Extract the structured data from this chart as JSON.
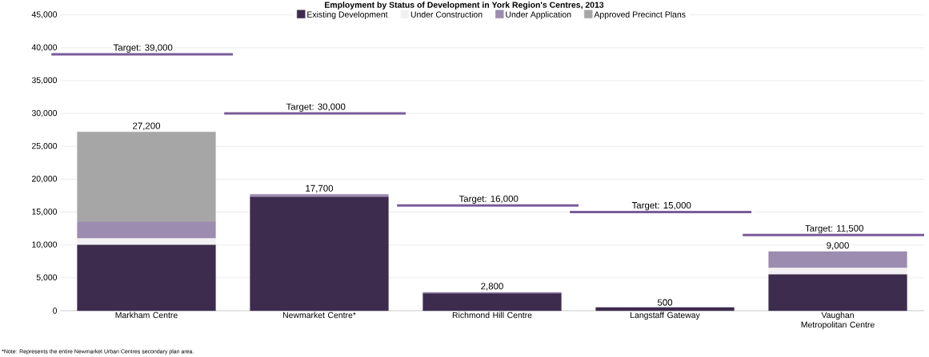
{
  "chart_data": {
    "type": "bar",
    "stacked": true,
    "title": "Employment by Status of Development in York Region's Centres, 2013",
    "categories": [
      "Markham Centre",
      "Newmarket Centre*",
      "Richmond Hill Centre",
      "Langstaff Gateway",
      "Vaughan Metropolitan Centre"
    ],
    "series": [
      {
        "name": "Existing Development",
        "color": "#3d2c4e",
        "values": [
          10000,
          17300,
          2600,
          500,
          5500
        ]
      },
      {
        "name": "Under Construction",
        "color": "#f2f0f2",
        "values": [
          1000,
          0,
          0,
          0,
          1000
        ]
      },
      {
        "name": "Under Application",
        "color": "#9c8cb0",
        "values": [
          2500,
          400,
          200,
          0,
          2500
        ]
      },
      {
        "name": "Approved Precinct Plans",
        "color": "#a6a6a6",
        "values": [
          13700,
          0,
          0,
          0,
          0
        ]
      }
    ],
    "totals": [
      "27,200",
      "17,700",
      "2,800",
      "500",
      "9,000"
    ],
    "ylim": [
      0,
      45000
    ],
    "yticks": [
      {
        "value": 0,
        "label": "0"
      },
      {
        "value": 5000,
        "label": "5,000"
      },
      {
        "value": 10000,
        "label": "10,000"
      },
      {
        "value": 15000,
        "label": "15,000"
      },
      {
        "value": 20000,
        "label": "20,000"
      },
      {
        "value": 25000,
        "label": "25,000"
      },
      {
        "value": 30000,
        "label": "30,000"
      },
      {
        "value": 35000,
        "label": "35,000"
      },
      {
        "value": 40000,
        "label": "40,000"
      },
      {
        "value": 45000,
        "label": "45,000"
      }
    ],
    "grid": "y",
    "legend": "top",
    "ref_lines": [
      {
        "axis": "y",
        "value": 39000,
        "label": "Target: 39,000",
        "color": "#7a5c9a"
      },
      {
        "axis": "y",
        "value": 30000,
        "label": "Target: 30,000",
        "color": "#7a5c9a"
      },
      {
        "axis": "y",
        "value": 16000,
        "label": "Target: 16,000",
        "color": "#7a5c9a"
      },
      {
        "axis": "y",
        "value": 15000,
        "label": "Target: 15,000",
        "color": "#7a5c9a"
      },
      {
        "axis": "y",
        "value": 11500,
        "label": "Target: 11,500",
        "color": "#7a5c9a"
      }
    ],
    "annotations": [
      "*Note: Represents the entire Newmarket Urban Centres secondary plan area."
    ]
  }
}
